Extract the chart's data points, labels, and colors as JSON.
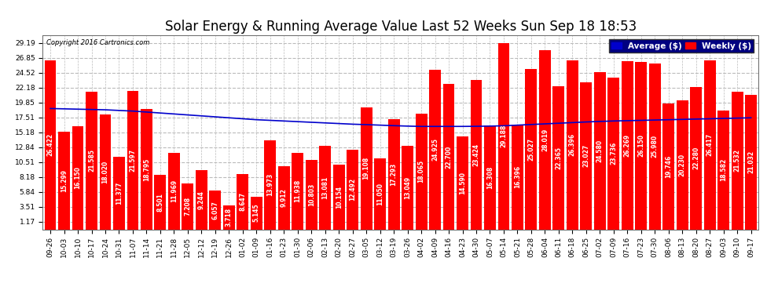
{
  "title": "Solar Energy & Running Average Value Last 52 Weeks Sun Sep 18 18:53",
  "copyright": "Copyright 2016 Cartronics.com",
  "bar_color": "#ff0000",
  "avg_line_color": "#0000cc",
  "background_color": "#ffffff",
  "grid_color": "#bbbbbb",
  "ylim": [
    0,
    30.36
  ],
  "yticks": [
    1.17,
    3.51,
    5.84,
    8.18,
    10.51,
    12.84,
    15.18,
    17.51,
    19.85,
    22.18,
    24.52,
    26.85,
    29.19
  ],
  "bar_values": [
    26.422,
    15.299,
    16.15,
    21.585,
    18.02,
    11.377,
    21.597,
    18.795,
    8.501,
    11.969,
    7.208,
    9.244,
    6.057,
    3.718,
    8.647,
    5.145,
    13.973,
    9.912,
    11.938,
    10.803,
    13.081,
    10.154,
    12.492,
    19.108,
    11.05,
    17.293,
    13.049,
    18.065,
    24.925,
    22.7,
    14.59,
    23.424,
    16.308,
    29.188,
    16.396,
    25.027,
    28.019,
    22.365,
    26.396,
    23.027,
    24.58,
    23.736,
    26.269,
    26.15,
    25.98,
    19.746,
    20.23,
    22.28,
    26.417,
    18.582,
    21.532,
    21.032
  ],
  "avg_values": [
    18.9,
    18.85,
    18.8,
    18.75,
    18.7,
    18.6,
    18.5,
    18.35,
    18.2,
    18.05,
    17.9,
    17.75,
    17.6,
    17.45,
    17.3,
    17.15,
    17.05,
    16.95,
    16.85,
    16.75,
    16.65,
    16.55,
    16.45,
    16.38,
    16.3,
    16.22,
    16.15,
    16.1,
    16.1,
    16.1,
    16.1,
    16.12,
    16.15,
    16.2,
    16.3,
    16.4,
    16.5,
    16.6,
    16.7,
    16.8,
    16.88,
    16.95,
    17.0,
    17.05,
    17.1,
    17.15,
    17.2,
    17.25,
    17.3,
    17.35,
    17.4,
    17.45
  ],
  "xlabels": [
    "09-26",
    "10-03",
    "10-10",
    "10-17",
    "10-24",
    "10-31",
    "11-07",
    "11-14",
    "11-21",
    "11-28",
    "12-05",
    "12-12",
    "12-19",
    "12-26",
    "01-02",
    "01-09",
    "01-16",
    "01-23",
    "01-30",
    "02-06",
    "02-13",
    "02-20",
    "02-27",
    "03-05",
    "03-12",
    "03-19",
    "03-26",
    "04-02",
    "04-09",
    "04-16",
    "04-23",
    "04-30",
    "05-07",
    "05-14",
    "05-21",
    "05-28",
    "06-04",
    "06-11",
    "06-18",
    "06-25",
    "07-02",
    "07-09",
    "07-16",
    "07-23",
    "07-30",
    "08-06",
    "08-13",
    "08-20",
    "08-27",
    "09-03",
    "09-10",
    "09-17"
  ],
  "legend_avg_color": "#0000cc",
  "legend_weekly_color": "#ff0000",
  "legend_avg_label": "Average ($)",
  "legend_weekly_label": "Weekly ($)",
  "title_fontsize": 12,
  "tick_fontsize": 6.5,
  "label_fontsize": 5.5
}
